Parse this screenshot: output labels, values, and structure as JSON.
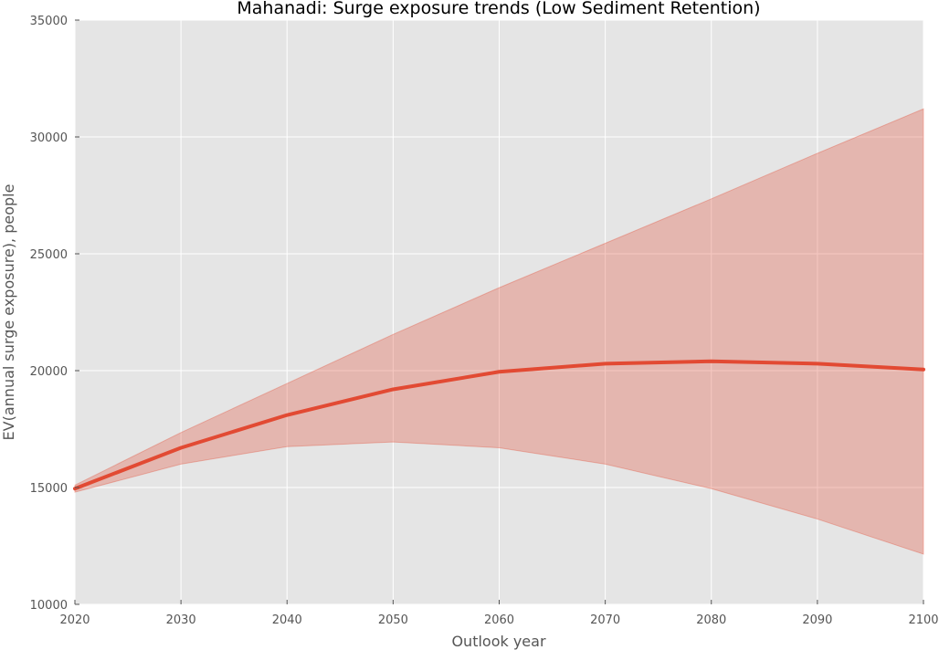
{
  "chart_data": {
    "type": "line",
    "title": "Mahanadi: Surge exposure trends (Low Sediment Retention)",
    "xlabel": "Outlook year",
    "ylabel": "EV(annual surge exposure), people",
    "xlim": [
      2020,
      2100
    ],
    "ylim": [
      10000,
      35000
    ],
    "x_ticks": [
      "2020",
      "2030",
      "2040",
      "2050",
      "2060",
      "2070",
      "2080",
      "2090",
      "2100"
    ],
    "y_ticks": [
      "10000",
      "15000",
      "20000",
      "25000",
      "30000",
      "35000"
    ],
    "grid": true,
    "x": [
      2020,
      2030,
      2040,
      2050,
      2060,
      2070,
      2080,
      2090,
      2100
    ],
    "series": [
      {
        "values": [
          14950,
          16700,
          18100,
          19200,
          19950,
          20300,
          20400,
          20300,
          20050
        ],
        "lower": [
          14800,
          16000,
          16750,
          16950,
          16700,
          16000,
          14950,
          13650,
          12150
        ],
        "upper": [
          15100,
          17350,
          19450,
          21550,
          23550,
          25450,
          27350,
          29300,
          31200
        ],
        "color": "#E24A33",
        "band_color": "#E24A33"
      }
    ],
    "colors": {
      "plot_background": "#E5E5E5",
      "grid": "#FFFFFF"
    }
  }
}
